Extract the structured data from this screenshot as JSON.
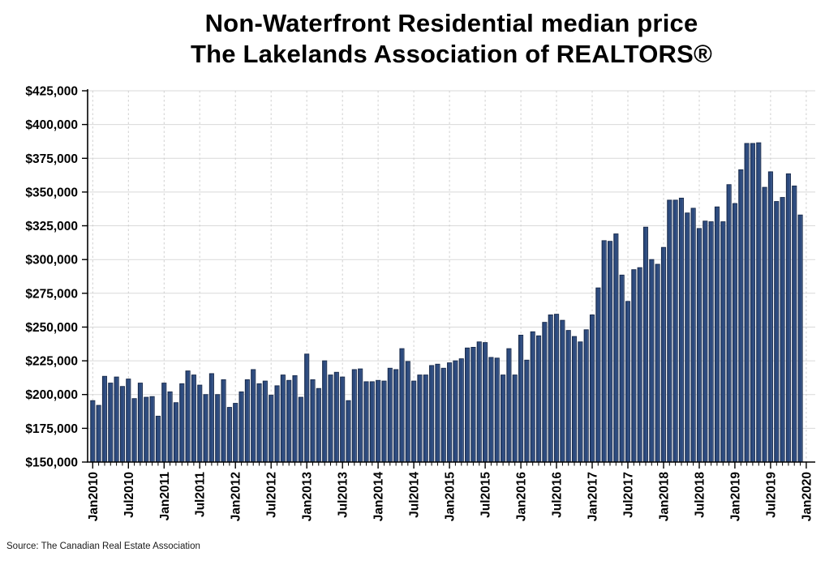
{
  "title": {
    "line1": "Non-Waterfront Residential median price",
    "line2": "The Lakelands Association of REALTORS®"
  },
  "source_note": "Source: The Canadian Real Estate Association",
  "chart_data": {
    "type": "bar",
    "title": "Non-Waterfront Residential median price — The Lakelands Association of REALTORS®",
    "xlabel": "",
    "ylabel": "",
    "legend": false,
    "grid": true,
    "y_min": 150000,
    "y_max": 425000,
    "y_step": 25000,
    "y_tick_labels": [
      "$425,000",
      "$400,000",
      "$375,000",
      "$350,000",
      "$325,000",
      "$300,000",
      "$275,000",
      "$250,000",
      "$225,000",
      "$200,000",
      "$175,000",
      "$150,000"
    ],
    "x_tick_labels": [
      "Jan2010",
      "Jul2010",
      "Jan2011",
      "Jul2011",
      "Jan2012",
      "Jul2012",
      "Jan2013",
      "Jul2013",
      "Jan2014",
      "Jul2014",
      "Jan2015",
      "Jul2015",
      "Jan2016",
      "Jul2016",
      "Jan2017",
      "Jul2017",
      "Jan2018",
      "Jul2018",
      "Jan2019",
      "Jul2019",
      "Jan2020"
    ],
    "bar_color": "#2d4b7f",
    "bar_edge_color": "#17294a",
    "categories": [
      "Jan2010",
      "Feb2010",
      "Mar2010",
      "Apr2010",
      "May2010",
      "Jun2010",
      "Jul2010",
      "Aug2010",
      "Sep2010",
      "Oct2010",
      "Nov2010",
      "Dec2010",
      "Jan2011",
      "Feb2011",
      "Mar2011",
      "Apr2011",
      "May2011",
      "Jun2011",
      "Jul2011",
      "Aug2011",
      "Sep2011",
      "Oct2011",
      "Nov2011",
      "Dec2011",
      "Jan2012",
      "Feb2012",
      "Mar2012",
      "Apr2012",
      "May2012",
      "Jun2012",
      "Jul2012",
      "Aug2012",
      "Sep2012",
      "Oct2012",
      "Nov2012",
      "Dec2012",
      "Jan2013",
      "Feb2013",
      "Mar2013",
      "Apr2013",
      "May2013",
      "Jun2013",
      "Jul2013",
      "Aug2013",
      "Sep2013",
      "Oct2013",
      "Nov2013",
      "Dec2013",
      "Jan2014",
      "Feb2014",
      "Mar2014",
      "Apr2014",
      "May2014",
      "Jun2014",
      "Jul2014",
      "Aug2014",
      "Sep2014",
      "Oct2014",
      "Nov2014",
      "Dec2014",
      "Jan2015",
      "Feb2015",
      "Mar2015",
      "Apr2015",
      "May2015",
      "Jun2015",
      "Jul2015",
      "Aug2015",
      "Sep2015",
      "Oct2015",
      "Nov2015",
      "Dec2015",
      "Jan2016",
      "Feb2016",
      "Mar2016",
      "Apr2016",
      "May2016",
      "Jun2016",
      "Jul2016",
      "Aug2016",
      "Sep2016",
      "Oct2016",
      "Nov2016",
      "Dec2016",
      "Jan2017",
      "Feb2017",
      "Mar2017",
      "Apr2017",
      "May2017",
      "Jun2017",
      "Jul2017",
      "Aug2017",
      "Sep2017",
      "Oct2017",
      "Nov2017",
      "Dec2017",
      "Jan2018",
      "Feb2018",
      "Mar2018",
      "Apr2018",
      "May2018",
      "Jun2018",
      "Jul2018",
      "Aug2018",
      "Sep2018",
      "Oct2018",
      "Nov2018",
      "Dec2018",
      "Jan2019",
      "Feb2019",
      "Mar2019",
      "Apr2019",
      "May2019",
      "Jun2019",
      "Jul2019",
      "Aug2019",
      "Sep2019",
      "Oct2019",
      "Nov2019",
      "Dec2019"
    ],
    "values": [
      195500,
      192000,
      213500,
      208500,
      213000,
      206000,
      211500,
      197000,
      208500,
      198000,
      198500,
      184000,
      208500,
      202000,
      194000,
      208000,
      217500,
      214500,
      207000,
      200000,
      215500,
      200000,
      211000,
      190500,
      193500,
      202000,
      211000,
      218500,
      208000,
      210000,
      199500,
      206500,
      214500,
      210500,
      214000,
      198000,
      230000,
      211000,
      204500,
      225000,
      214500,
      216500,
      213000,
      195500,
      218500,
      219000,
      209500,
      209500,
      210500,
      210000,
      219500,
      218500,
      234000,
      224500,
      210000,
      214500,
      214500,
      221500,
      222500,
      219500,
      223500,
      225000,
      226500,
      234500,
      235000,
      239000,
      238500,
      227500,
      227000,
      214500,
      234000,
      214500,
      244000,
      225500,
      246500,
      243500,
      253500,
      259000,
      259500,
      255000,
      247500,
      243000,
      239000,
      248000,
      259000,
      279000,
      314000,
      313500,
      319000,
      288500,
      269000,
      292500,
      294000,
      324000,
      300000,
      296500,
      309000,
      344000,
      344000,
      345500,
      334500,
      338000,
      323000,
      328500,
      328000,
      339000,
      328000,
      355500,
      341500,
      366500,
      386000,
      386000,
      386500,
      353500,
      365000,
      343000,
      346000,
      363500,
      354500,
      333000
    ]
  }
}
